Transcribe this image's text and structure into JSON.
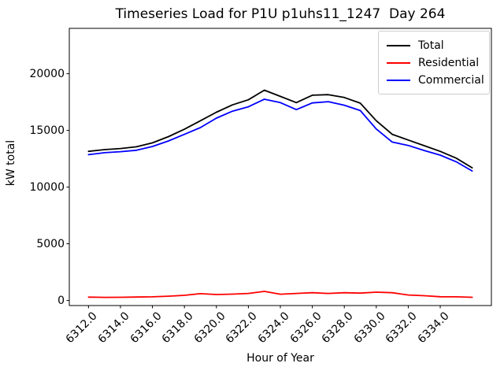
{
  "title": "Timeseries Load for P1U p1uhs11_1247  Day 264",
  "chart_data": {
    "type": "line",
    "title": "Timeseries Load for P1U p1uhs11_1247  Day 264",
    "xlabel": "Hour of Year",
    "ylabel": "kW total",
    "background": "#ffffff",
    "grid": false,
    "xlim": [
      6310.8,
      6337.2
    ],
    "ylim": [
      -450,
      24000
    ],
    "x_tick_rotation": 45,
    "x": [
      6312,
      6313,
      6314,
      6315,
      6316,
      6317,
      6318,
      6319,
      6320,
      6321,
      6322,
      6323,
      6324,
      6325,
      6326,
      6327,
      6328,
      6329,
      6330,
      6331,
      6332,
      6333,
      6334,
      6335,
      6336
    ],
    "series": [
      {
        "name": "Total",
        "color": "#000000",
        "values": [
          13150,
          13300,
          13400,
          13550,
          13900,
          14450,
          15100,
          15850,
          16600,
          17250,
          17700,
          18550,
          18000,
          17450,
          18100,
          18150,
          17900,
          17400,
          15850,
          14650,
          14150,
          13650,
          13150,
          12550,
          11700
        ]
      },
      {
        "name": "Residential",
        "color": "#ff0000",
        "values": [
          290,
          270,
          280,
          300,
          320,
          380,
          450,
          600,
          520,
          560,
          620,
          800,
          550,
          620,
          680,
          620,
          680,
          650,
          730,
          680,
          480,
          420,
          330,
          320,
          280
        ]
      },
      {
        "name": "Commercial",
        "color": "#0000ff",
        "values": [
          12860,
          13030,
          13120,
          13250,
          13580,
          14070,
          14650,
          15250,
          16080,
          16690,
          17080,
          17750,
          17450,
          16830,
          17420,
          17530,
          17220,
          16750,
          15120,
          13970,
          13670,
          13230,
          12820,
          12230,
          11420
        ]
      }
    ],
    "xticks": {
      "values": [
        6312,
        6314,
        6316,
        6318,
        6320,
        6322,
        6324,
        6326,
        6328,
        6330,
        6332,
        6334
      ],
      "labels": [
        "6312.0",
        "6314.0",
        "6316.0",
        "6318.0",
        "6320.0",
        "6322.0",
        "6324.0",
        "6326.0",
        "6328.0",
        "6330.0",
        "6332.0",
        "6334.0"
      ]
    },
    "yticks": {
      "values": [
        0,
        5000,
        10000,
        15000,
        20000
      ],
      "labels": [
        "0",
        "5000",
        "10000",
        "15000",
        "20000"
      ]
    },
    "legend": {
      "position": "upper right",
      "entries": [
        "Total",
        "Residential",
        "Commercial"
      ]
    }
  }
}
